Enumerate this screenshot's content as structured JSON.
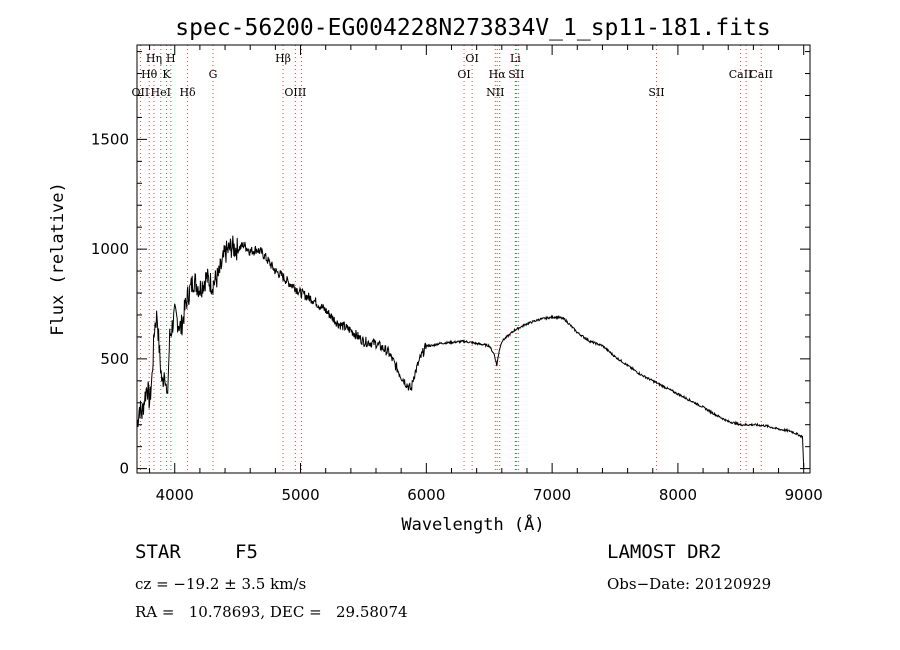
{
  "chart_data": {
    "type": "line",
    "title": "spec-56200-EG004228N273834V_1_sp11-181.fits",
    "xlabel": "Wavelength (Å)",
    "ylabel": "Flux (relative)",
    "xlim": [
      3700,
      9050
    ],
    "ylim": [
      -20,
      1930
    ],
    "xticks": [
      4000,
      5000,
      6000,
      7000,
      8000,
      9000
    ],
    "yticks": [
      0,
      500,
      1000,
      1500
    ],
    "grid": false,
    "series": [
      {
        "x": [
          3700,
          3720,
          3740,
          3760,
          3780,
          3800,
          3820,
          3840,
          3860,
          3880,
          3900,
          3920,
          3940,
          3960,
          3980,
          4000,
          4050,
          4100,
          4150,
          4200,
          4250,
          4300,
          4350,
          4400,
          4450,
          4500,
          4550,
          4600,
          4650,
          4700,
          4750,
          4800,
          4850,
          4900,
          4950,
          5000,
          5100,
          5200,
          5300,
          5400,
          5500,
          5600,
          5700,
          5800,
          5850,
          5880,
          5900,
          5950,
          6000,
          6050,
          6100,
          6200,
          6300,
          6400,
          6500,
          6540,
          6560,
          6580,
          6600,
          6700,
          6800,
          6900,
          7000,
          7050,
          7100,
          7200,
          7300,
          7400,
          7500,
          7600,
          7700,
          7800,
          7900,
          8000,
          8100,
          8200,
          8300,
          8400,
          8500,
          8600,
          8700,
          8800,
          8900,
          8990,
          9000
        ],
        "y": [
          200,
          280,
          250,
          320,
          380,
          300,
          420,
          650,
          700,
          520,
          380,
          460,
          300,
          600,
          650,
          700,
          640,
          780,
          860,
          820,
          870,
          840,
          880,
          980,
          1010,
          1000,
          1020,
          990,
          1000,
          980,
          940,
          900,
          880,
          850,
          830,
          800,
          770,
          720,
          660,
          630,
          580,
          570,
          530,
          420,
          380,
          360,
          420,
          500,
          560,
          560,
          570,
          575,
          580,
          570,
          560,
          520,
          470,
          540,
          580,
          630,
          660,
          680,
          690,
          690,
          680,
          620,
          580,
          560,
          510,
          470,
          430,
          400,
          370,
          340,
          310,
          280,
          245,
          215,
          200,
          200,
          195,
          180,
          170,
          145,
          5
        ]
      }
    ],
    "lines": [
      {
        "label": "OII",
        "wavelength": 3727,
        "tier": 3
      },
      {
        "label": "Hθ",
        "wavelength": 3797,
        "tier": 2
      },
      {
        "label": "Hη",
        "wavelength": 3835,
        "tier": 1
      },
      {
        "label": "HeI",
        "wavelength": 3889,
        "tier": 3
      },
      {
        "label": "K",
        "wavelength": 3934,
        "tier": 2
      },
      {
        "label": "H",
        "wavelength": 3969,
        "tier": 1
      },
      {
        "label": "Hδ",
        "wavelength": 4102,
        "tier": 3
      },
      {
        "label": "G",
        "wavelength": 4304,
        "tier": 2
      },
      {
        "label": "Hβ",
        "wavelength": 4861,
        "tier": 1
      },
      {
        "label": "OIII",
        "wavelength": 4959,
        "tier": 3
      },
      {
        "label": "OIII",
        "wavelength": 5007,
        "tier": 3
      },
      {
        "label": "OI",
        "wavelength": 6300,
        "tier": 2
      },
      {
        "label": "OI",
        "wavelength": 6364,
        "tier": 1
      },
      {
        "label": "NII",
        "wavelength": 6548,
        "tier": 3
      },
      {
        "label": "Hα",
        "wavelength": 6563,
        "tier": 2
      },
      {
        "label": "NII",
        "wavelength": 6583,
        "tier": 3
      },
      {
        "label": "Li",
        "wavelength": 6708,
        "tier": 1
      },
      {
        "label": "SII",
        "wavelength": 6716,
        "tier": 2
      },
      {
        "label": "SII",
        "wavelength": 6731,
        "tier": 2
      },
      {
        "label": "SII",
        "wavelength": 7830,
        "tier": 3
      },
      {
        "label": "CaII",
        "wavelength": 8498,
        "tier": 2
      },
      {
        "label": "CaII",
        "wavelength": 8542,
        "tier": 2
      },
      {
        "label": "CaII",
        "wavelength": 8662,
        "tier": 2
      }
    ],
    "line_color": "#d94040"
  },
  "footer": {
    "class": "STAR",
    "subclass": "F5",
    "cz": "cz = −19.2 ± 3.5 km/s",
    "coords": "RA =   10.78693, DEC =   29.58074",
    "survey": "LAMOST DR2",
    "obs_date": "Obs−Date: 20120929"
  }
}
